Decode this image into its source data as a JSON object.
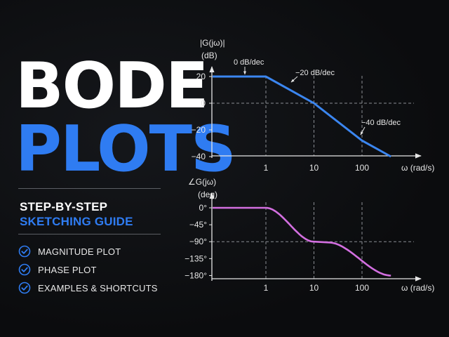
{
  "title": {
    "line1": "BODE",
    "line2": "PLOTS"
  },
  "subtitle": {
    "line1": "STEP-BY-STEP",
    "line2": "SKETCHING GUIDE"
  },
  "bullets": [
    {
      "label": "MAGNITUDE PLOT"
    },
    {
      "label": "PHASE PLOT"
    },
    {
      "label": "EXAMPLES & SHORTCUTS"
    }
  ],
  "colors": {
    "accent": "#2f7cf2",
    "magnitude_line": "#3b86f0",
    "phase_line": "#d36fe0"
  },
  "chart_data": [
    {
      "type": "line",
      "title": "",
      "ylabel": "|G(jω)|",
      "yunit": "(dB)",
      "xlabel": "ω (rad/s)",
      "xscale": "log",
      "xticks": [
        "1",
        "10",
        "100"
      ],
      "yticks": [
        "20",
        "0",
        "−20",
        "−40"
      ],
      "x": [
        0.1,
        1,
        10,
        100,
        400
      ],
      "values": [
        20,
        20,
        0,
        -28,
        -40
      ],
      "annotations": [
        "0 dB/dec",
        "−20 dB/dec",
        "−40 dB/dec"
      ]
    },
    {
      "type": "line",
      "title": "",
      "ylabel": "∠G(jω)",
      "yunit": "(deg)",
      "xlabel": "ω (rad/s)",
      "xscale": "log",
      "xticks": [
        "1",
        "10",
        "100"
      ],
      "yticks": [
        "0°",
        "−45°",
        "−90°",
        "−135°",
        "−180°"
      ],
      "x": [
        0.1,
        1,
        3,
        10,
        20,
        100,
        400
      ],
      "values": [
        0,
        0,
        -45,
        -90,
        -100,
        -170,
        -180
      ]
    }
  ]
}
